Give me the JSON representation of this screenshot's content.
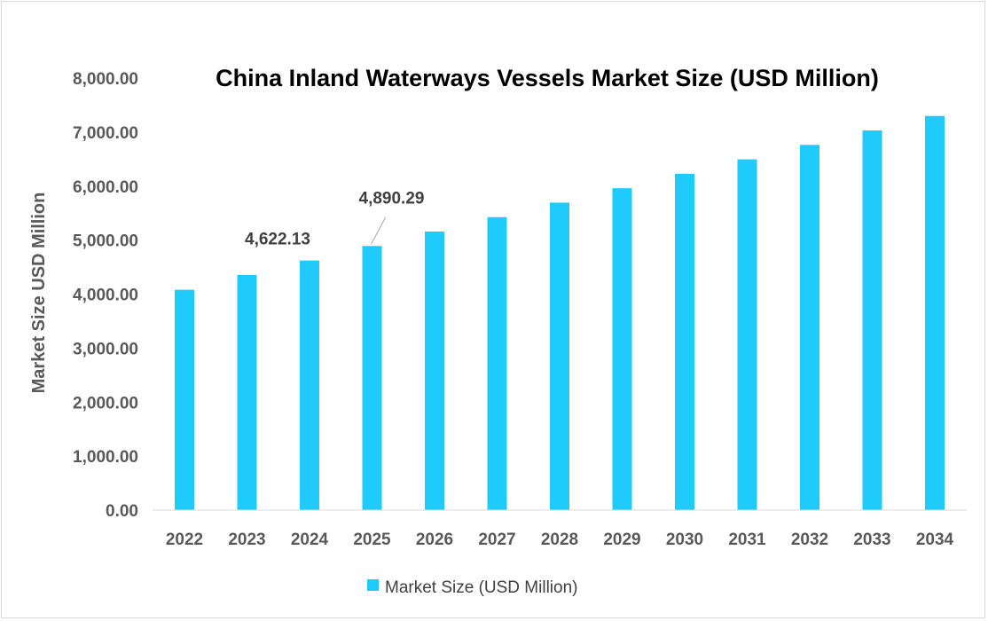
{
  "chart_data": {
    "type": "bar",
    "title": "China Inland Waterways Vessels Market Size (USD Million)",
    "xlabel": "",
    "ylabel": "Market Size USD Million",
    "ylim": [
      0,
      8000
    ],
    "yticks": [
      0,
      1000,
      2000,
      3000,
      4000,
      5000,
      6000,
      7000,
      8000
    ],
    "ytick_labels": [
      "0.00",
      "1,000.00",
      "2,000.00",
      "3,000.00",
      "4,000.00",
      "5,000.00",
      "6,000.00",
      "7,000.00",
      "8,000.00"
    ],
    "categories": [
      "2022",
      "2023",
      "2024",
      "2025",
      "2026",
      "2027",
      "2028",
      "2029",
      "2030",
      "2031",
      "2032",
      "2033",
      "2034"
    ],
    "series": [
      {
        "name": "Market Size (USD Million)",
        "color": "#1ECBFA",
        "values": [
          4080,
          4355,
          4622.13,
          4890.29,
          5158,
          5425,
          5693,
          5960,
          6228,
          6495,
          6763,
          7030,
          7298
        ]
      }
    ],
    "data_labels": [
      {
        "category": "2024",
        "text": "4,622.13"
      },
      {
        "category": "2025",
        "text": "4,890.29"
      }
    ],
    "grid": false,
    "legend": "bottom"
  }
}
